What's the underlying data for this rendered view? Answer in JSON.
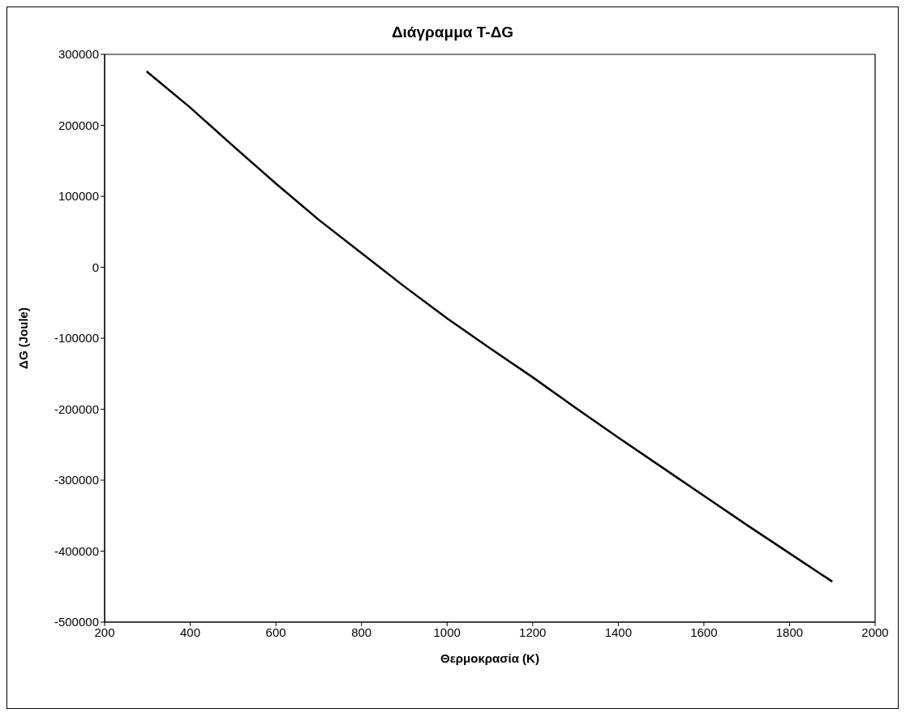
{
  "chart_data": {
    "type": "line",
    "title": "Διάγραμμα T-ΔG",
    "xlabel": "Θερμοκρασία (K)",
    "ylabel": "ΔG (Joule)",
    "x": [
      298,
      400,
      500,
      600,
      700,
      800,
      900,
      1000,
      1100,
      1200,
      1300,
      1400,
      1500,
      1600,
      1700,
      1800,
      1900
    ],
    "series": [
      {
        "color": "#000000",
        "values": [
          276000,
          225000,
          171000,
          118000,
          67000,
          20000,
          -27000,
          -72000,
          -114000,
          -155000,
          -198000,
          -240000,
          -281000,
          -322000,
          -363000,
          -403000,
          -443000
        ]
      }
    ],
    "xlim": [
      200,
      2000
    ],
    "xticks": [
      200,
      400,
      600,
      800,
      1000,
      1200,
      1400,
      1600,
      1800,
      2000
    ],
    "ylim": [
      -500000,
      300000
    ],
    "yticks": [
      -500000,
      -400000,
      -300000,
      -200000,
      -100000,
      0,
      100000,
      200000,
      300000
    ],
    "grid": false,
    "legend": false,
    "marker": "none",
    "line_style": "solid"
  }
}
